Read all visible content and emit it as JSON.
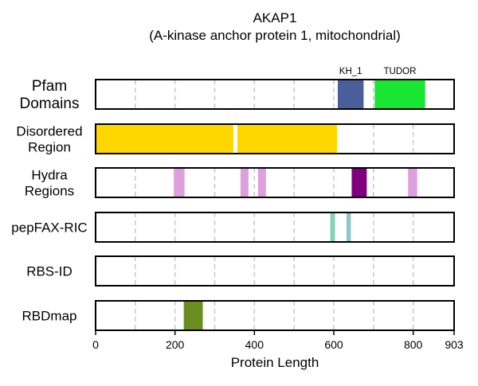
{
  "chart_data": {
    "type": "feature-track",
    "title": "AKAP1",
    "subtitle": "(A-kinase anchor protein 1, mitochondrial)",
    "xlabel": "Protein Length",
    "xlim": [
      0,
      903
    ],
    "xticks": [
      0,
      200,
      400,
      600,
      800,
      903
    ],
    "grid": true,
    "tracks": [
      {
        "label_lines": [
          "Pfam",
          "Domains"
        ],
        "features": [
          {
            "start": 610,
            "end": 675,
            "color": "#4A5F9A",
            "label": "KH_1"
          },
          {
            "start": 703,
            "end": 830,
            "color": "#19E533",
            "label": "TUDOR"
          }
        ]
      },
      {
        "label_lines": [
          "Disordered",
          "Region"
        ],
        "features": [
          {
            "start": 0,
            "end": 347,
            "color": "#FFD700"
          },
          {
            "start": 357,
            "end": 608,
            "color": "#FFD700"
          }
        ]
      },
      {
        "label_lines": [
          "Hydra",
          "Regions"
        ],
        "features": [
          {
            "start": 197,
            "end": 224,
            "color": "#DDA0DD"
          },
          {
            "start": 365,
            "end": 385,
            "color": "#DDA0DD"
          },
          {
            "start": 409,
            "end": 429,
            "color": "#DDA0DD"
          },
          {
            "start": 645,
            "end": 683,
            "color": "#800080"
          },
          {
            "start": 787,
            "end": 810,
            "color": "#DDA0DD"
          }
        ]
      },
      {
        "label_lines": [
          "pepFAX-RIC"
        ],
        "features": [
          {
            "start": 591,
            "end": 603,
            "color": "#88D1B8"
          },
          {
            "start": 632,
            "end": 643,
            "color": "#8FC7C7"
          }
        ]
      },
      {
        "label_lines": [
          "RBS-ID"
        ],
        "features": []
      },
      {
        "label_lines": [
          "RBDmap"
        ],
        "features": [
          {
            "start": 222,
            "end": 270,
            "color": "#6B8E23"
          }
        ]
      }
    ]
  }
}
